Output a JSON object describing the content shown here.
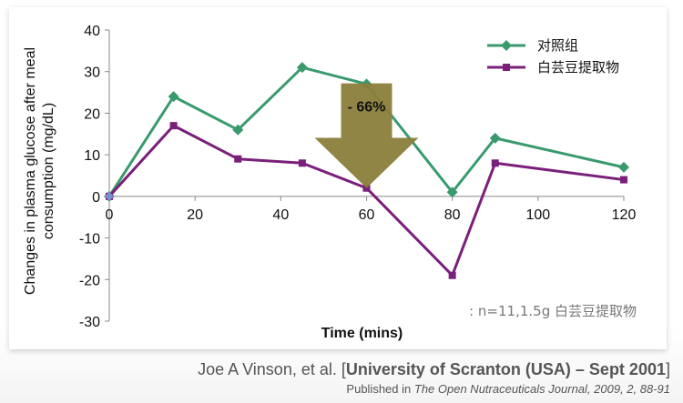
{
  "chart_data": {
    "type": "line",
    "title": "",
    "xlabel": "Time (mins)",
    "ylabel": "Changes in plasma glucose after meal consumption (mg/dL)",
    "xlim": [
      0,
      120
    ],
    "ylim": [
      -30,
      40
    ],
    "x_ticks": [
      0,
      20,
      40,
      60,
      80,
      100,
      120
    ],
    "y_ticks": [
      40,
      30,
      20,
      10,
      0,
      -10,
      -20,
      -30
    ],
    "grid": false,
    "legend_position": "top-right",
    "series": [
      {
        "name": "对照组",
        "color": "#3a9a6e",
        "marker": "diamond",
        "x": [
          0,
          15,
          30,
          45,
          60,
          80,
          90,
          120
        ],
        "y": [
          0,
          24,
          16,
          31,
          27,
          1,
          14,
          7
        ]
      },
      {
        "name": "白芸豆提取物",
        "color": "#7a1f7a",
        "marker": "square",
        "x": [
          0,
          15,
          30,
          45,
          60,
          80,
          90,
          120
        ],
        "y": [
          0,
          17,
          9,
          8,
          2,
          -19,
          8,
          4
        ]
      }
    ],
    "annotations": [
      {
        "type": "arrow",
        "label": "- 66%",
        "x": 60,
        "y_top": 25,
        "y_tip": 2,
        "color": "#8a7e3a"
      },
      {
        "type": "note",
        "label": ": n=11,1.5g 白芸豆提取物"
      }
    ]
  },
  "citation": {
    "author": "Joe A Vinson, et al. [",
    "affiliation": "University of Scranton (USA) – Sept 2001",
    "close": "]",
    "published_prefix": "Published in ",
    "journal": "The Open Nutraceuticals Journal, 2009, 2, 88-91"
  }
}
